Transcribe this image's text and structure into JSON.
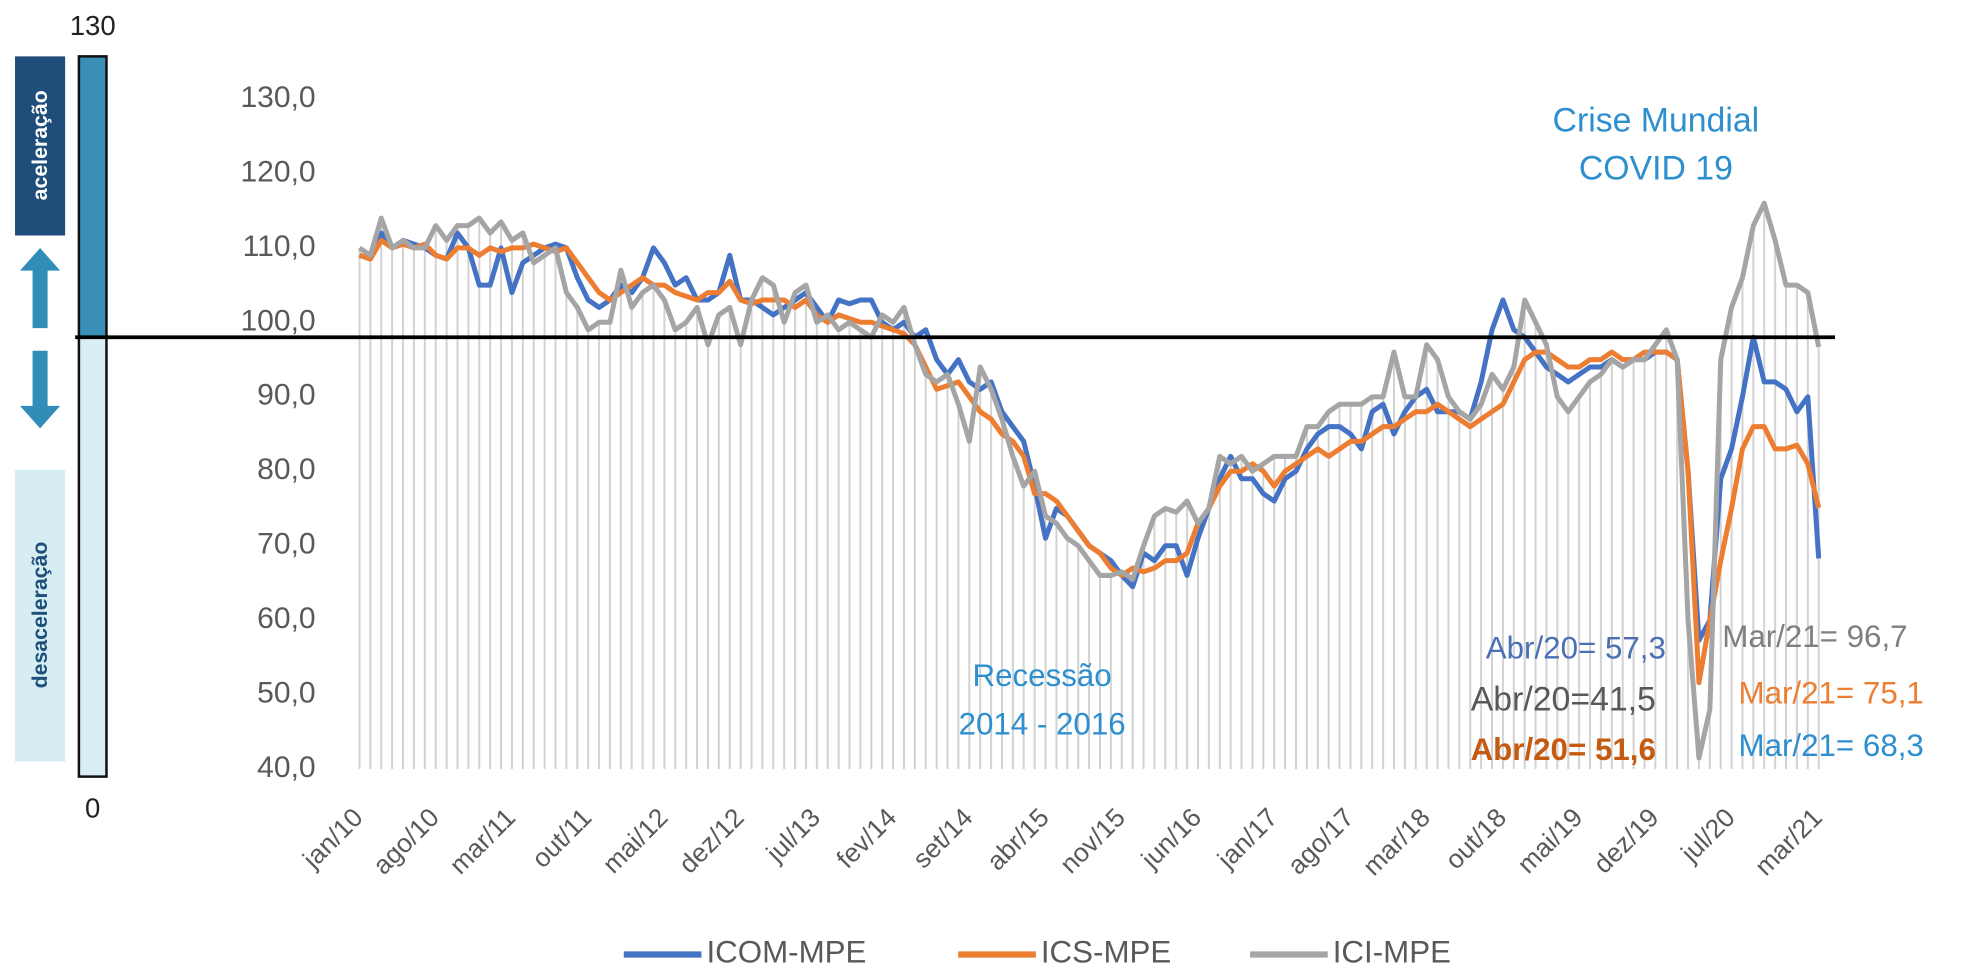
{
  "chart_data": {
    "type": "line",
    "categories": [
      "jan/10",
      null,
      null,
      null,
      null,
      null,
      null,
      "ago/10",
      null,
      null,
      null,
      null,
      null,
      null,
      "mar/11",
      null,
      null,
      null,
      null,
      null,
      null,
      "out/11",
      null,
      null,
      null,
      null,
      null,
      null,
      "mai/12",
      null,
      null,
      null,
      null,
      null,
      null,
      "dez/12",
      null,
      null,
      null,
      null,
      null,
      null,
      "jul/13",
      null,
      null,
      null,
      null,
      null,
      null,
      "fev/14",
      null,
      null,
      null,
      null,
      null,
      null,
      "set/14",
      null,
      null,
      null,
      null,
      null,
      null,
      "abr/15",
      null,
      null,
      null,
      null,
      null,
      null,
      "nov/15",
      null,
      null,
      null,
      null,
      null,
      null,
      "jun/16",
      null,
      null,
      null,
      null,
      null,
      null,
      "jan/17",
      null,
      null,
      null,
      null,
      null,
      null,
      "ago/17",
      null,
      null,
      null,
      null,
      null,
      null,
      "mar/18",
      null,
      null,
      null,
      null,
      null,
      null,
      "out/18",
      null,
      null,
      null,
      null,
      null,
      null,
      "mai/19",
      null,
      null,
      null,
      null,
      null,
      null,
      "dez/19",
      null,
      null,
      null,
      null,
      null,
      null,
      "jul/20",
      null,
      null,
      null,
      null,
      null,
      null,
      null,
      "mar/21"
    ],
    "series": [
      {
        "name": "ICOM-MPE",
        "color": "#4472c4",
        "values": [
          109,
          108.5,
          112,
          110,
          111,
          110.5,
          110,
          109,
          108.5,
          112,
          110,
          105,
          105,
          110,
          104,
          108,
          109,
          110,
          110.5,
          110,
          106,
          103,
          102,
          103,
          105,
          104,
          106,
          110,
          108,
          105,
          106,
          103,
          103,
          104,
          109,
          103,
          103,
          102,
          101,
          102,
          103,
          104,
          102,
          100,
          103,
          102.5,
          103,
          103,
          100,
          99,
          100,
          98,
          99,
          95,
          93,
          95,
          92,
          91,
          92,
          88,
          86,
          84,
          78,
          71,
          75,
          74,
          72,
          70,
          69,
          68,
          66,
          64.5,
          69,
          68,
          70,
          70,
          66,
          71,
          75,
          79,
          82,
          79,
          79,
          77,
          76,
          79,
          80,
          83,
          85,
          86,
          86,
          85,
          83,
          88,
          89,
          85,
          88,
          90,
          91,
          88,
          88,
          88,
          87,
          92,
          99,
          103,
          99,
          98,
          96,
          94,
          93,
          92,
          93,
          94,
          94,
          95,
          94,
          95,
          95,
          96,
          96,
          95,
          80,
          57.3,
          60,
          79,
          83,
          90,
          98,
          92,
          92,
          91,
          88,
          90,
          68.3
        ]
      },
      {
        "name": "ICS-MPE",
        "color": "#ed7d31",
        "values": [
          109,
          108.5,
          111,
          110,
          110.5,
          110,
          110.5,
          109,
          108.5,
          110,
          110,
          109,
          110,
          109.5,
          110,
          110,
          110.5,
          110,
          109.5,
          110,
          108,
          106,
          104,
          103,
          104,
          105,
          106,
          105,
          105,
          104,
          103.5,
          103,
          104,
          104,
          105.5,
          103,
          102.5,
          103,
          103,
          103,
          102,
          103,
          101,
          100,
          101,
          100.5,
          100,
          100,
          99.5,
          99,
          98.5,
          97,
          94,
          91,
          91.5,
          92,
          90,
          88,
          87,
          85,
          84,
          82,
          77,
          77,
          76,
          74,
          72,
          70,
          69,
          67,
          66,
          67,
          66.5,
          67,
          68,
          68,
          69,
          73,
          75,
          78,
          80,
          80,
          81,
          80,
          78,
          80,
          81,
          82,
          83,
          82,
          83,
          84,
          84,
          85,
          86,
          86,
          87,
          88,
          88,
          89,
          88,
          87,
          86,
          87,
          88,
          89,
          92,
          95,
          96,
          96,
          95,
          94,
          94,
          95,
          95,
          96,
          95,
          95,
          96,
          96,
          96,
          95,
          80,
          51.6,
          60,
          68,
          75,
          83,
          86,
          86,
          83,
          83,
          83.5,
          81,
          75.1
        ]
      },
      {
        "name": "ICI-MPE",
        "color": "#a5a5a5",
        "values": [
          110,
          109,
          114,
          110,
          111,
          110,
          110,
          113,
          111,
          113,
          113,
          114,
          112,
          113.5,
          111,
          112,
          108,
          109,
          110,
          104,
          102,
          99,
          100,
          100,
          107,
          102,
          104,
          105,
          103,
          99,
          100,
          102,
          97,
          101,
          102,
          97,
          103,
          106,
          105,
          100,
          104,
          105,
          100,
          101,
          99,
          100,
          99,
          98,
          101,
          100,
          102,
          97,
          93,
          92,
          93,
          89,
          84,
          94,
          91,
          87,
          82,
          78,
          80,
          74,
          73,
          71,
          70,
          68,
          66,
          66,
          66.5,
          65.5,
          70,
          74,
          75,
          74.5,
          76,
          73,
          75,
          82,
          81,
          82,
          80,
          81,
          82,
          82,
          82,
          86,
          86,
          88,
          89,
          89,
          89,
          90,
          90,
          96,
          90,
          90,
          97,
          95,
          90,
          88,
          87,
          89,
          93,
          91,
          94,
          103,
          100,
          97,
          90,
          88,
          90,
          92,
          93,
          95,
          94,
          95,
          95,
          97,
          99,
          95,
          60,
          41.5,
          48,
          95,
          102,
          106,
          113,
          116,
          111,
          105,
          105,
          104,
          96.7
        ]
      }
    ],
    "ylim": [
      40,
      130
    ],
    "yticks": [
      {
        "value": 40,
        "label": "40,0"
      },
      {
        "value": 50,
        "label": "50,0"
      },
      {
        "value": 60,
        "label": "60,0"
      },
      {
        "value": 70,
        "label": "70,0"
      },
      {
        "value": 80,
        "label": "80,0"
      },
      {
        "value": 90,
        "label": "90,0"
      },
      {
        "value": 100,
        "label": "100,0"
      },
      {
        "value": 110,
        "label": "110,0"
      },
      {
        "value": 120,
        "label": "120,0"
      },
      {
        "value": 130,
        "label": "130,0"
      }
    ],
    "reference_line": 98,
    "legend": "bottom",
    "annotations": [
      {
        "text": "Crise Mundial",
        "color": "#2e8fce"
      },
      {
        "text": "COVID 19",
        "color": "#2e8fce"
      },
      {
        "text": "Recessão",
        "color": "#2e8fce"
      },
      {
        "text": "2014 - 2016",
        "color": "#2e8fce"
      },
      {
        "text": "Abr/20= 57,3",
        "color": "#4a6fb5"
      },
      {
        "text": "Abr/20=41,5",
        "color": "#595959"
      },
      {
        "text": "Abr/20= 51,6",
        "color": "#c55a11"
      },
      {
        "text": "Mar/21= 96,7",
        "color": "#7f7f7f"
      },
      {
        "text": "Mar/21= 75,1",
        "color": "#ed7d31"
      },
      {
        "text": "Mar/21= 68,3",
        "color": "#2e8fce"
      }
    ],
    "gauge": {
      "max": 130,
      "min": 0,
      "upper_label": "aceleração",
      "lower_label": "desaceleração"
    }
  }
}
